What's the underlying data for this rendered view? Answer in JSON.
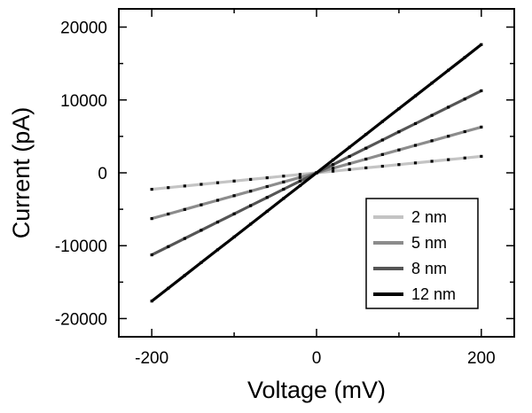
{
  "chart_data": {
    "type": "line",
    "xlabel": "Voltage (mV)",
    "ylabel": "Current (pA)",
    "xlim": [
      -240,
      240
    ],
    "ylim": [
      -22500,
      22500
    ],
    "xticks": [
      -200,
      0,
      200
    ],
    "yticks": [
      -20000,
      -10000,
      0,
      10000,
      20000
    ],
    "legend_position": "lower-right",
    "grid": false,
    "x": [
      -200,
      -180,
      -160,
      -140,
      -120,
      -100,
      -80,
      -60,
      -40,
      -20,
      0,
      20,
      40,
      60,
      80,
      100,
      120,
      140,
      160,
      180,
      200
    ],
    "series": [
      {
        "name": "2 nm",
        "color": "#c4c4c4",
        "slope": 11.3,
        "values": [
          -2260,
          -2034,
          -1808,
          -1582,
          -1356,
          -1130,
          -904,
          -678,
          -452,
          -226,
          0,
          226,
          452,
          678,
          904,
          1130,
          1356,
          1582,
          1808,
          2034,
          2260
        ]
      },
      {
        "name": "5 nm",
        "color": "#8c8c8c",
        "slope": 31.4,
        "values": [
          -6280,
          -5652,
          -5024,
          -4396,
          -3768,
          -3140,
          -2512,
          -1884,
          -1256,
          -628,
          0,
          628,
          1256,
          1884,
          2512,
          3140,
          3768,
          4396,
          5024,
          5652,
          6280
        ]
      },
      {
        "name": "8 nm",
        "color": "#555555",
        "slope": 56.3,
        "values": [
          -11260,
          -10134,
          -9008,
          -7882,
          -6756,
          -5630,
          -4504,
          -3378,
          -2252,
          -1126,
          0,
          1126,
          2252,
          3378,
          4504,
          5630,
          6756,
          7882,
          9008,
          10134,
          11260
        ]
      },
      {
        "name": "12 nm",
        "color": "#000000",
        "slope": 88.0,
        "values": [
          -17600,
          -15840,
          -14080,
          -12320,
          -10560,
          -8800,
          -7040,
          -5280,
          -3520,
          -1760,
          0,
          1760,
          3520,
          5280,
          7040,
          8800,
          10560,
          12320,
          14080,
          15840,
          17600
        ]
      }
    ]
  }
}
